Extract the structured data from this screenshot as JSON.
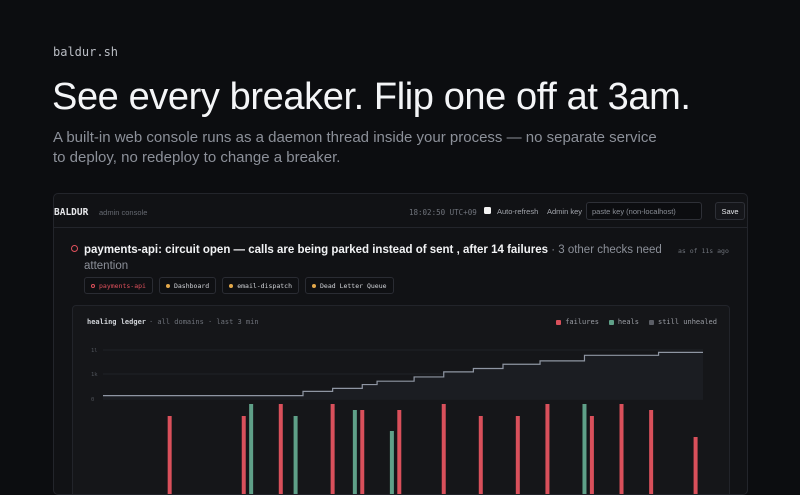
{
  "brand": "baldur.sh",
  "headline": "See every breaker. Flip one off at 3am.",
  "subtext": "A built-in web console runs as a daemon thread inside your process — no separate service to deploy, no redeploy to change a breaker.",
  "console": {
    "brand": "BALDUR",
    "subtitle": "admin console",
    "clock": "18:02:50 UTC+09",
    "auto_refresh_label": "Auto-refresh",
    "auto_refresh_checked": false,
    "admin_key_label": "Admin key",
    "admin_key_placeholder": "paste key (non-localhost)",
    "admin_key_value": "",
    "save_label": "Save",
    "alert": {
      "service": "payments-api",
      "message": "circuit open — calls are being parked instead of sent , after 14 failures",
      "suffix": "· 3 other checks need attention",
      "meta": "as of 11s ago"
    },
    "chips": [
      {
        "label": "payments-api",
        "status": "open"
      },
      {
        "label": "Dashboard",
        "status": "warn"
      },
      {
        "label": "email-dispatch",
        "status": "warn"
      },
      {
        "label": "Dead Letter Queue",
        "status": "warn"
      }
    ],
    "ledger": {
      "title": "healing ledger",
      "subtitle": "· all domains · last 3 min",
      "legend": [
        {
          "label": "failures",
          "color": "#d9505b"
        },
        {
          "label": "heals",
          "color": "#5fa088"
        },
        {
          "label": "still unhealed",
          "color": "#5b5e66"
        }
      ]
    }
  },
  "chart_data": {
    "type": "area",
    "title": "healing ledger",
    "y_ticks": [
      "0",
      "1k",
      "1l"
    ],
    "ylim": [
      0,
      1.25
    ],
    "series": [
      {
        "name": "still unhealed",
        "color": "#8f96a3",
        "values": [
          0.08,
          0.08,
          0.08,
          0.08,
          0.08,
          0.08,
          0.08,
          0.08,
          0.08,
          0.08,
          0.08,
          0.08,
          0.08,
          0.08,
          0.08,
          0.08,
          0.08,
          0.08,
          0.08,
          0.08,
          0.08,
          0.08,
          0.08,
          0.08,
          0.08,
          0.08,
          0.08,
          0.18,
          0.18,
          0.18,
          0.18,
          0.25,
          0.25,
          0.25,
          0.25,
          0.34,
          0.34,
          0.42,
          0.42,
          0.42,
          0.42,
          0.42,
          0.52,
          0.52,
          0.52,
          0.52,
          0.64,
          0.64,
          0.64,
          0.64,
          0.72,
          0.72,
          0.72,
          0.72,
          0.82,
          0.82,
          0.82,
          0.82,
          0.82,
          0.9,
          0.9,
          0.9,
          0.9,
          0.9,
          0.9,
          1.03,
          1.03,
          1.03,
          1.03,
          1.03,
          1.03,
          1.03,
          1.03,
          1.03,
          1.03,
          1.1,
          1.1,
          1.1,
          1.1,
          1.1,
          1.1,
          1.1
        ]
      },
      {
        "name": "failures",
        "color": "#d9505b",
        "values": [
          0,
          0,
          0,
          0,
          0,
          0,
          0,
          0,
          0,
          1.0,
          0,
          0,
          0,
          0,
          0,
          0,
          0,
          0,
          0,
          1.0,
          0,
          0,
          0,
          0,
          1.4,
          0,
          0,
          0,
          0,
          0,
          0,
          1.4,
          0,
          0,
          0,
          1.2,
          0,
          0,
          0,
          0,
          1.2,
          0,
          0,
          0,
          0,
          0,
          1.4,
          0,
          0,
          0,
          0,
          1.0,
          0,
          0,
          0,
          0,
          1.0,
          0,
          0,
          0,
          1.4,
          0,
          0,
          0,
          0,
          0,
          1.0,
          0,
          0,
          0,
          1.4,
          0,
          0,
          0,
          1.2,
          0,
          0,
          0,
          0,
          0,
          0.3,
          0
        ]
      },
      {
        "name": "heals",
        "color": "#5fa088",
        "values": [
          0,
          0,
          0,
          0,
          0,
          0,
          0,
          0,
          0,
          0,
          0,
          0,
          0,
          0,
          0,
          0,
          0,
          0,
          0,
          0,
          1.4,
          0,
          0,
          0,
          0,
          0,
          1.0,
          0,
          0,
          0,
          0,
          0,
          0,
          0,
          1.2,
          0,
          0,
          0,
          0,
          0.5,
          0,
          0,
          0,
          0,
          0,
          0,
          0,
          0,
          0,
          0,
          0,
          0,
          0,
          0,
          0,
          0,
          0,
          0,
          0,
          0,
          0,
          0,
          0,
          0,
          0,
          1.4,
          0,
          0,
          0,
          0,
          0,
          0,
          0,
          0,
          0,
          0,
          0,
          0,
          0,
          0,
          0,
          0
        ]
      }
    ]
  }
}
